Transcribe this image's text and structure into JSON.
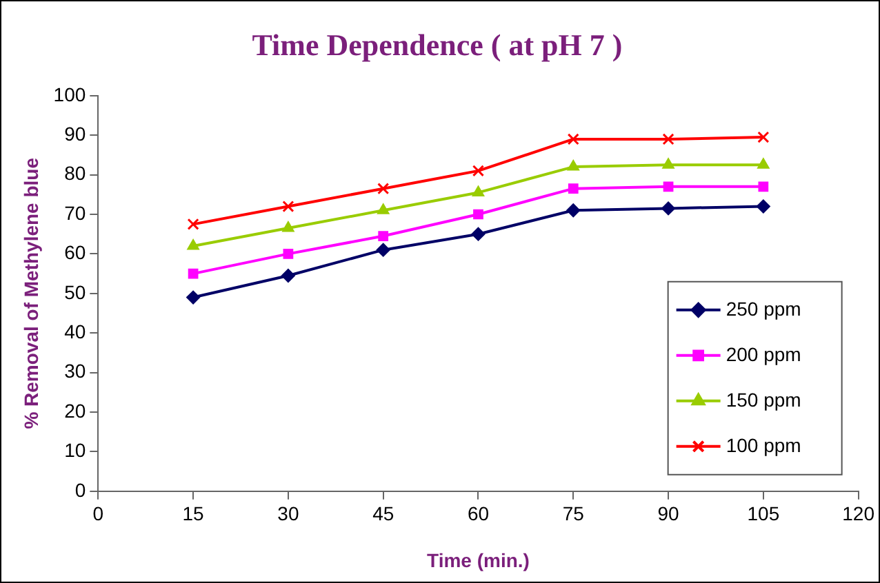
{
  "chart_data": {
    "type": "line",
    "title": "Time Dependence ( at pH 7 )",
    "xlabel": "Time (min.)",
    "ylabel": "% Removal of Methylene blue",
    "x": [
      15,
      30,
      45,
      60,
      75,
      90,
      105
    ],
    "series": [
      {
        "name": "250 ppm",
        "color": "#000066",
        "marker": "diamond",
        "values": [
          49,
          54.5,
          61,
          65,
          71,
          71.5,
          72
        ]
      },
      {
        "name": "200 ppm",
        "color": "#ff00ff",
        "marker": "square",
        "values": [
          55,
          60,
          64.5,
          70,
          76.5,
          77,
          77
        ]
      },
      {
        "name": "150 ppm",
        "color": "#99cc00",
        "marker": "triangle",
        "values": [
          62,
          66.5,
          71,
          75.5,
          82,
          82.5,
          82.5
        ]
      },
      {
        "name": "100 ppm",
        "color": "#ff0000",
        "marker": "cross",
        "values": [
          67.5,
          72,
          76.5,
          81,
          89,
          89,
          89.5
        ]
      }
    ],
    "xlim": [
      0,
      120
    ],
    "xticks": [
      0,
      15,
      30,
      45,
      60,
      75,
      90,
      105,
      120
    ],
    "ylim": [
      0,
      100
    ],
    "yticks": [
      0,
      10,
      20,
      30,
      40,
      50,
      60,
      70,
      80,
      90,
      100
    ],
    "grid": false,
    "legend": "bottom right",
    "line_style": "solid"
  }
}
